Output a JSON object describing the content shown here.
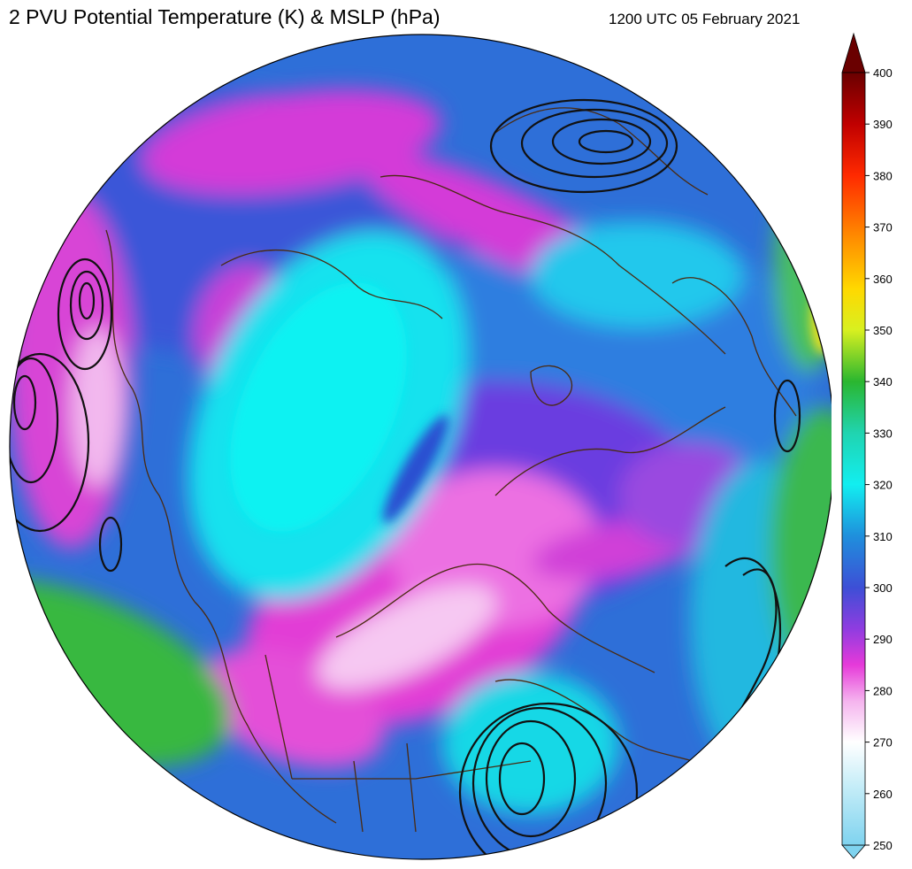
{
  "title": "2 PVU Potential Temperature (K) & MSLP (hPa)",
  "datetime": "1200 UTC 05 February 2021",
  "colorbar": {
    "min": 250,
    "max": 400,
    "ticks": [
      250,
      260,
      270,
      280,
      290,
      300,
      310,
      320,
      330,
      340,
      350,
      360,
      370,
      380,
      390,
      400
    ],
    "stops": [
      {
        "value": 250,
        "color": "#7fd3ef"
      },
      {
        "value": 262,
        "color": "#c9eef8"
      },
      {
        "value": 270,
        "color": "#ffffff"
      },
      {
        "value": 278,
        "color": "#f5b3ee"
      },
      {
        "value": 285,
        "color": "#e63ad9"
      },
      {
        "value": 292,
        "color": "#8f3ce0"
      },
      {
        "value": 300,
        "color": "#3d4fd6"
      },
      {
        "value": 310,
        "color": "#1f8fdc"
      },
      {
        "value": 320,
        "color": "#12eef0"
      },
      {
        "value": 330,
        "color": "#20d4b0"
      },
      {
        "value": 340,
        "color": "#2ab630"
      },
      {
        "value": 350,
        "color": "#d8f020"
      },
      {
        "value": 358,
        "color": "#ffd800"
      },
      {
        "value": 368,
        "color": "#ff8c00"
      },
      {
        "value": 380,
        "color": "#ff2a00"
      },
      {
        "value": 390,
        "color": "#c00000"
      },
      {
        "value": 400,
        "color": "#6a0000"
      }
    ]
  },
  "colors": {
    "coastline": "#4a2a10",
    "isobar": "#111111",
    "background": "#ffffff"
  }
}
